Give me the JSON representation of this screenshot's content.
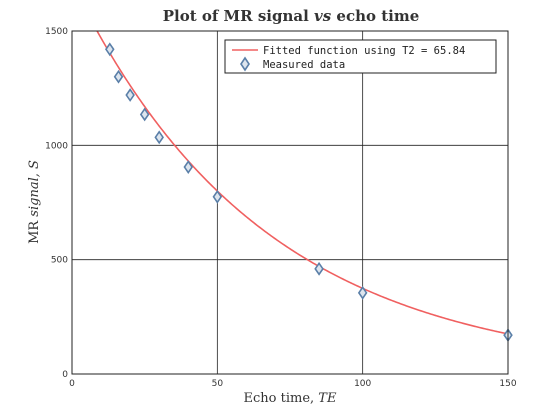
{
  "chart_data": {
    "type": "scatter",
    "title": {
      "prefix": "Plot of MR signal ",
      "italic": "vs",
      "suffix": " echo time"
    },
    "xlabel": {
      "prefix": "Echo time, ",
      "italic": "TE"
    },
    "ylabel": {
      "prefix": "MR ",
      "italic": "signal, S"
    },
    "xlim": [
      0,
      150
    ],
    "ylim": [
      0,
      1500
    ],
    "x_ticks": [
      0,
      50,
      100,
      150
    ],
    "y_ticks": [
      0,
      500,
      1000,
      1500
    ],
    "grid": true,
    "legend_position": "top-right",
    "series": [
      {
        "name": "Fitted function using T2 = 65.84",
        "kind": "line",
        "color": "#f06060",
        "model": {
          "S0": 1710,
          "T2": 65.84
        }
      },
      {
        "name": "Measured data",
        "kind": "marker",
        "marker": "diamond",
        "color": "#5a7fa8",
        "x": [
          13,
          16,
          20,
          25,
          30,
          40,
          50,
          85,
          100,
          150
        ],
        "y": [
          1420,
          1300,
          1220,
          1135,
          1035,
          905,
          775,
          460,
          355,
          170
        ]
      }
    ]
  }
}
